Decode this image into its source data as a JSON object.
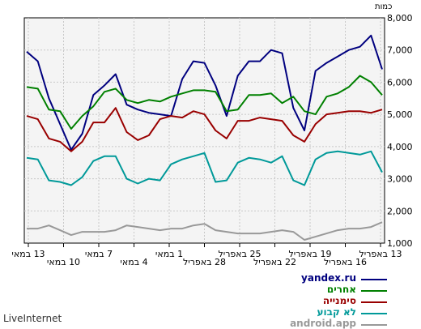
{
  "chart_data": {
    "type": "line",
    "y_unit_label": "כמות",
    "ylim": [
      1000,
      8000
    ],
    "y_ticks": [
      "1,000",
      "2,000",
      "3,000",
      "4,000",
      "5,000",
      "6,000",
      "7,000",
      "8,000"
    ],
    "grid": true,
    "legend_position": "bottom-right",
    "x_labels": [
      "13 באפריל",
      "16 באפריל",
      "19 באפריל",
      "22 באפריל",
      "25 באפריל",
      "28 באפריל",
      "1 במאי",
      "4 במאי",
      "7 במאי",
      "10 במאי",
      "13 במאי"
    ],
    "series": [
      {
        "name": "yandex.ru",
        "color": "#00007f",
        "values": [
          6950,
          6650,
          5500,
          4700,
          3900,
          4400,
          5600,
          5900,
          6250,
          5300,
          5150,
          5050,
          5000,
          4950,
          6100,
          6650,
          6600,
          5900,
          4950,
          6200,
          6650,
          6650,
          7000,
          6900,
          5200,
          4500,
          6350,
          6600,
          6800,
          7000,
          7100,
          7450,
          6400
        ]
      },
      {
        "name": "אחרים",
        "color": "#008000",
        "values": [
          5850,
          5800,
          5150,
          5100,
          4550,
          4950,
          5250,
          5700,
          5800,
          5450,
          5350,
          5450,
          5400,
          5550,
          5650,
          5750,
          5750,
          5700,
          5100,
          5150,
          5600,
          5600,
          5650,
          5350,
          5550,
          5100,
          5000,
          5550,
          5650,
          5850,
          6200,
          6000,
          5600
        ]
      },
      {
        "name": "סימנייה",
        "color": "#990000",
        "values": [
          4950,
          4850,
          4250,
          4150,
          3850,
          4150,
          4750,
          4750,
          5200,
          4450,
          4200,
          4350,
          4850,
          4950,
          4900,
          5100,
          5000,
          4500,
          4250,
          4800,
          4800,
          4900,
          4850,
          4800,
          4350,
          4150,
          4700,
          5000,
          5050,
          5100,
          5100,
          5050,
          5150
        ]
      },
      {
        "name": "לא קבוע",
        "color": "#009999",
        "values": [
          3650,
          3600,
          2950,
          2900,
          2800,
          3050,
          3550,
          3700,
          3700,
          3000,
          2850,
          3000,
          2950,
          3450,
          3600,
          3700,
          3800,
          2900,
          2950,
          3500,
          3650,
          3600,
          3500,
          3700,
          2950,
          2800,
          3600,
          3800,
          3850,
          3800,
          3750,
          3850,
          3200
        ]
      },
      {
        "name": "android.app",
        "color": "#999999",
        "values": [
          1450,
          1450,
          1550,
          1400,
          1250,
          1350,
          1350,
          1350,
          1400,
          1550,
          1500,
          1450,
          1400,
          1450,
          1450,
          1550,
          1600,
          1400,
          1350,
          1300,
          1300,
          1300,
          1350,
          1400,
          1350,
          1100,
          1200,
          1300,
          1400,
          1450,
          1450,
          1500,
          1650
        ]
      }
    ]
  },
  "watermark": "LiveInternet"
}
